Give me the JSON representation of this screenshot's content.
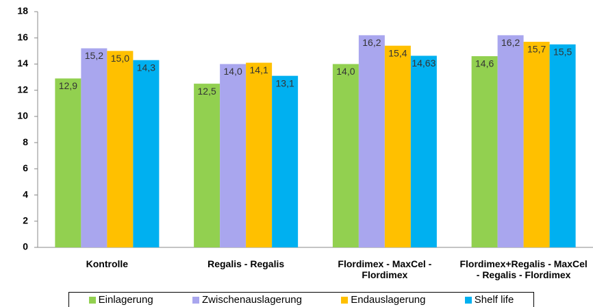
{
  "chart_data": {
    "type": "bar",
    "categories": [
      "Kontrolle",
      "Regalis - Regalis",
      "Flordimex - MaxCel - Flordimex",
      "Flordimex+Regalis - MaxCel - Regalis - Flordimex"
    ],
    "series": [
      {
        "name": "Einlagerung",
        "color": "#92d050",
        "values": [
          12.9,
          12.5,
          14.0,
          14.6
        ],
        "value_labels": [
          "12,9",
          "12,5",
          "14,0",
          "14,6"
        ]
      },
      {
        "name": "Zwischenauslagerung",
        "color": "#a9a6ee",
        "values": [
          15.2,
          14.0,
          16.2,
          16.2
        ],
        "value_labels": [
          "15,2",
          "14,0",
          "16,2",
          "16,2"
        ]
      },
      {
        "name": "Endauslagerung",
        "color": "#ffc000",
        "values": [
          15.0,
          14.1,
          15.4,
          15.7
        ],
        "value_labels": [
          "15,0",
          "14,1",
          "15,4",
          "15,7"
        ]
      },
      {
        "name": "Shelf life",
        "color": "#00b0f0",
        "values": [
          14.3,
          13.1,
          14.63,
          15.5
        ],
        "value_labels": [
          "14,3",
          "13,1",
          "14,63",
          "15,5"
        ]
      }
    ],
    "ylim": [
      0,
      18
    ],
    "yticks": [
      0,
      2,
      4,
      6,
      8,
      10,
      12,
      14,
      16,
      18
    ],
    "grid": false
  }
}
